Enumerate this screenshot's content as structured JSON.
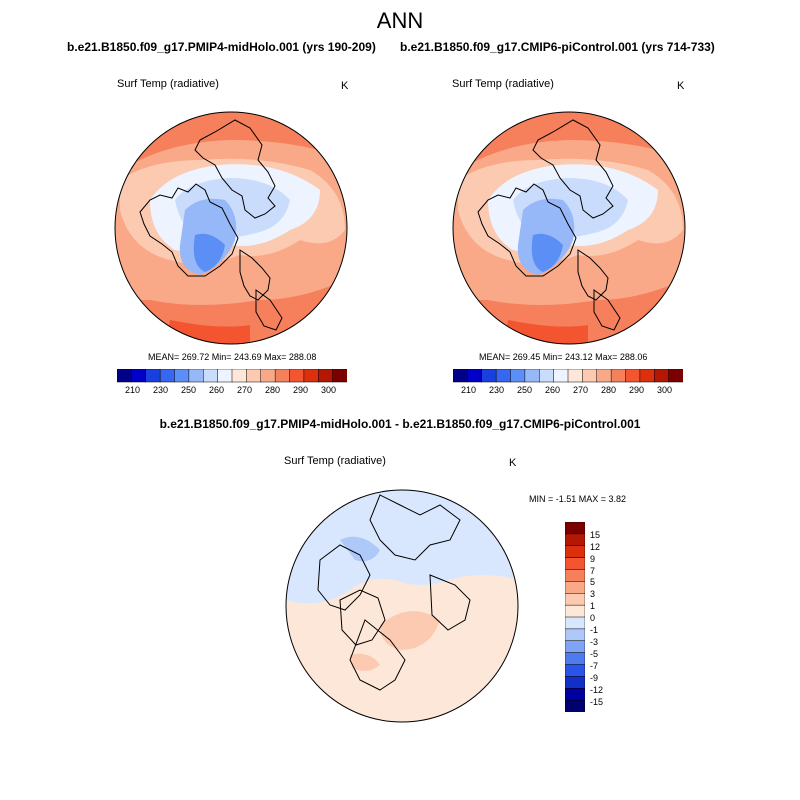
{
  "title": "ANN",
  "panels": {
    "left": {
      "case": "b.e21.B1850.f09_g17.PMIP4-midHolo.001 (yrs 190-209)",
      "variable": "Surf Temp (radiative)",
      "units": "K",
      "stats": "MEAN= 269.72  Min= 243.69  Max= 288.08",
      "colorbar_labels": [
        "210",
        "230",
        "250",
        "260",
        "270",
        "280",
        "290",
        "300"
      ]
    },
    "right": {
      "case": "b.e21.B1850.f09_g17.CMIP6-piControl.001 (yrs 714-733)",
      "variable": "Surf Temp (radiative)",
      "units": "K",
      "stats": "MEAN= 269.45  Min= 243.12  Max= 288.06",
      "colorbar_labels": [
        "210",
        "230",
        "250",
        "260",
        "270",
        "280",
        "290",
        "300"
      ]
    },
    "diff": {
      "title": "b.e21.B1850.f09_g17.PMIP4-midHolo.001 - b.e21.B1850.f09_g17.CMIP6-piControl.001",
      "variable": "Surf Temp (radiative)",
      "units": "K",
      "stats": "MIN =  -1.51 MAX =   3.82",
      "colorbar_labels": [
        "15",
        "12",
        "9",
        "7",
        "5",
        "3",
        "1",
        "0",
        "-1",
        "-3",
        "-5",
        "-7",
        "-9",
        "-12",
        "-15"
      ]
    }
  },
  "colors": {
    "abs_scale": [
      "#00008b",
      "#0000c8",
      "#1a3fe0",
      "#3766f0",
      "#5b8ff5",
      "#97b8f8",
      "#c9dcfc",
      "#eef4ff",
      "#fde7d8",
      "#fbcab0",
      "#f9a888",
      "#f67f5c",
      "#f25530",
      "#dc2f0d",
      "#b51705",
      "#7d0000"
    ],
    "diff_scale": [
      "#7d0000",
      "#b51705",
      "#dc2f0d",
      "#f25530",
      "#f67f5c",
      "#f9a888",
      "#fbcab0",
      "#fde7d8",
      "#d8e7fd",
      "#aec9f9",
      "#7fa3f5",
      "#4f7bf0",
      "#2b55e6",
      "#1230c8",
      "#0000a0",
      "#00006e"
    ]
  }
}
